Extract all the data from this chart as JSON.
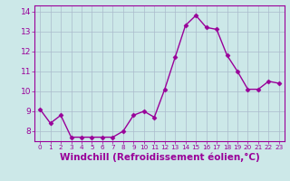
{
  "x": [
    0,
    1,
    2,
    3,
    4,
    5,
    6,
    7,
    8,
    9,
    10,
    11,
    12,
    13,
    14,
    15,
    16,
    17,
    18,
    19,
    20,
    21,
    22,
    23
  ],
  "y": [
    9.1,
    8.4,
    8.8,
    7.7,
    7.7,
    7.7,
    7.7,
    7.7,
    8.0,
    8.8,
    9.0,
    8.7,
    10.1,
    11.7,
    13.3,
    13.8,
    13.2,
    13.1,
    11.8,
    11.0,
    10.1,
    10.1,
    10.5,
    10.4
  ],
  "line_color": "#990099",
  "marker": "D",
  "marker_size": 2.5,
  "bg_color": "#cce8e8",
  "grid_color": "#aabbcc",
  "xlabel": "Windchill (Refroidissement éolien,°C)",
  "xlabel_color": "#990099",
  "ylim": [
    7.5,
    14.3
  ],
  "xlim": [
    -0.5,
    23.5
  ],
  "yticks": [
    8,
    9,
    10,
    11,
    12,
    13,
    14
  ],
  "xticks": [
    0,
    1,
    2,
    3,
    4,
    5,
    6,
    7,
    8,
    9,
    10,
    11,
    12,
    13,
    14,
    15,
    16,
    17,
    18,
    19,
    20,
    21,
    22,
    23
  ],
  "tick_color": "#990099",
  "tick_labelsize": 6.5,
  "xlabel_fontsize": 7.5,
  "linewidth": 1.0
}
